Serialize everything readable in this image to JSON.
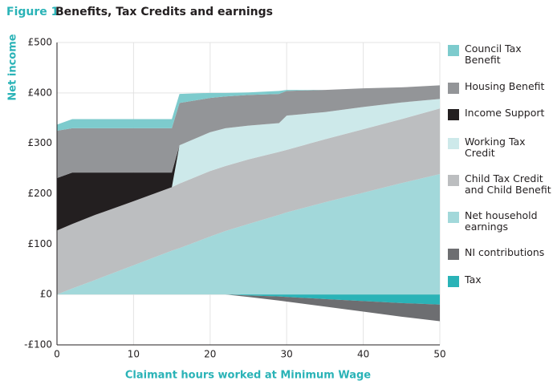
{
  "chart_data": {
    "type": "stacked_area",
    "figure_label": "Figure 1",
    "title": "Benefits, Tax Credits and earnings",
    "x_label": "Claimant hours worked at Minimum Wage",
    "y_label": "Net income",
    "x": [
      0,
      2,
      5,
      10,
      15,
      16,
      20,
      22,
      25,
      29,
      30,
      35,
      40,
      45,
      50
    ],
    "series": [
      {
        "name": "Council Tax Benefit",
        "color": "#7dcbcd",
        "values": [
          12,
          18,
          18,
          18,
          18,
          18,
          10,
          7,
          5,
          6,
          2,
          0,
          0,
          0,
          0
        ]
      },
      {
        "name": "Housing Benefit",
        "color": "#939598",
        "values": [
          94,
          88,
          88,
          88,
          88,
          84,
          68,
          63,
          61,
          58,
          49,
          44,
          37,
          30,
          27
        ]
      },
      {
        "name": "Income Support",
        "color": "#231f20",
        "values": [
          104,
          102,
          84,
          57,
          29,
          0,
          0,
          0,
          0,
          0,
          0,
          0,
          0,
          0,
          0
        ]
      },
      {
        "name": "Working Tax Credit",
        "color": "#cde9ea",
        "values": [
          0,
          0,
          0,
          0,
          0,
          76,
          77,
          75,
          67,
          57,
          68,
          54,
          44,
          33,
          19
        ]
      },
      {
        "name": "Child Tax Credit and Child Benefit",
        "color": "#bcbec0",
        "values": [
          127,
          128,
          129,
          127,
          126,
          128,
          130,
          129,
          128,
          125,
          124,
          125,
          126,
          127,
          130
        ]
      },
      {
        "name": "Net household earnings",
        "color": "#a2d8da",
        "values": [
          0,
          12,
          29,
          58,
          87,
          92,
          115,
          126,
          140,
          158,
          163,
          183,
          202,
          221,
          239
        ]
      },
      {
        "name": "NI contributions",
        "color": "#6d6e71",
        "values": [
          0,
          0,
          0,
          0,
          0,
          0,
          0,
          0,
          -3,
          -8,
          -9,
          -15,
          -21,
          -27,
          -33
        ]
      },
      {
        "name": "Tax",
        "color": "#2ab3b7",
        "values": [
          0,
          0,
          0,
          0,
          0,
          0,
          0,
          0,
          -2,
          -4,
          -5,
          -9,
          -13,
          -17,
          -20
        ]
      }
    ],
    "xlim": [
      0,
      50
    ],
    "xticks": [
      0,
      10,
      20,
      30,
      40,
      50
    ],
    "ylim": [
      -100,
      500
    ],
    "yticks": [
      {
        "value": -100,
        "label": "-£100"
      },
      {
        "value": 0,
        "label": "£0"
      },
      {
        "value": 100,
        "label": "£100"
      },
      {
        "value": 200,
        "label": "£200"
      },
      {
        "value": 300,
        "label": "£300"
      },
      {
        "value": 400,
        "label": "£400"
      },
      {
        "value": 500,
        "label": "£500"
      }
    ],
    "grid": true,
    "legend": "right"
  }
}
